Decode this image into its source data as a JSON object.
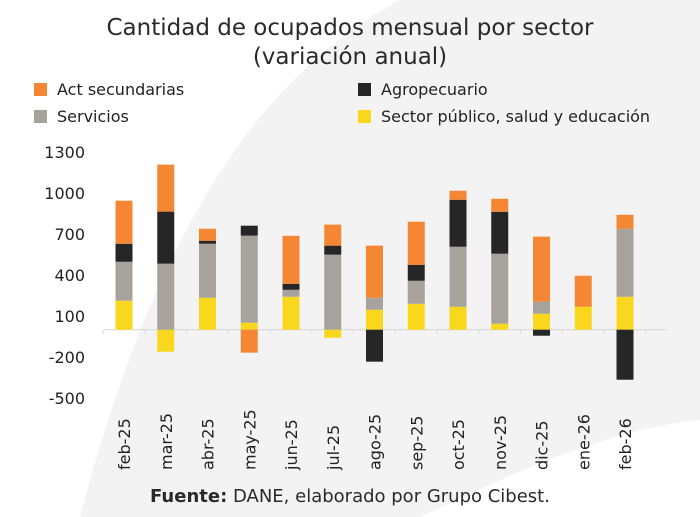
{
  "chart_data": {
    "type": "bar",
    "stacked": true,
    "title": "Cantidad de ocupados mensual por sector",
    "subtitle": "(variación anual)",
    "categories": [
      "feb-25",
      "mar-25",
      "abr-25",
      "may-25",
      "jun-25",
      "jul-25",
      "ago-25",
      "sep-25",
      "oct-25",
      "nov-25",
      "dic-25",
      "ene-26",
      "feb-26"
    ],
    "series": [
      {
        "name": "Sector público, salud y educación",
        "color": "#f9d71c",
        "values": [
          212,
          -161,
          234,
          51,
          241,
          -59,
          146,
          190,
          168,
          44,
          117,
          168,
          241
        ]
      },
      {
        "name": "Servicios",
        "color": "#a7a29c",
        "values": [
          285,
          483,
          395,
          637,
          51,
          549,
          88,
          168,
          439,
          512,
          88,
          0,
          498
        ]
      },
      {
        "name": "Agropecuario",
        "color": "#262626",
        "values": [
          132,
          381,
          22,
          73,
          44,
          66,
          -234,
          117,
          344,
          307,
          -44,
          0,
          -366
        ]
      },
      {
        "name": "Act secundarias",
        "color": "#f58634",
        "values": [
          315,
          344,
          88,
          -168,
          351,
          154,
          381,
          315,
          66,
          95,
          476,
          227,
          102
        ]
      }
    ],
    "yticks": [
      1300,
      1000,
      700,
      400,
      100,
      -200,
      -500
    ],
    "ylim": [
      -500,
      1300
    ],
    "grid": false,
    "legend_placement": "top"
  },
  "legend": [
    {
      "label": "Act secundarias",
      "color": "#f58634"
    },
    {
      "label": "Agropecuario",
      "color": "#262626"
    },
    {
      "label": "Servicios",
      "color": "#a7a29c"
    },
    {
      "label": "Sector público, salud y educación",
      "color": "#f9d71c"
    }
  ],
  "footer": {
    "label": "Fuente:",
    "text": " DANE, elaborado por Grupo Cibest."
  }
}
